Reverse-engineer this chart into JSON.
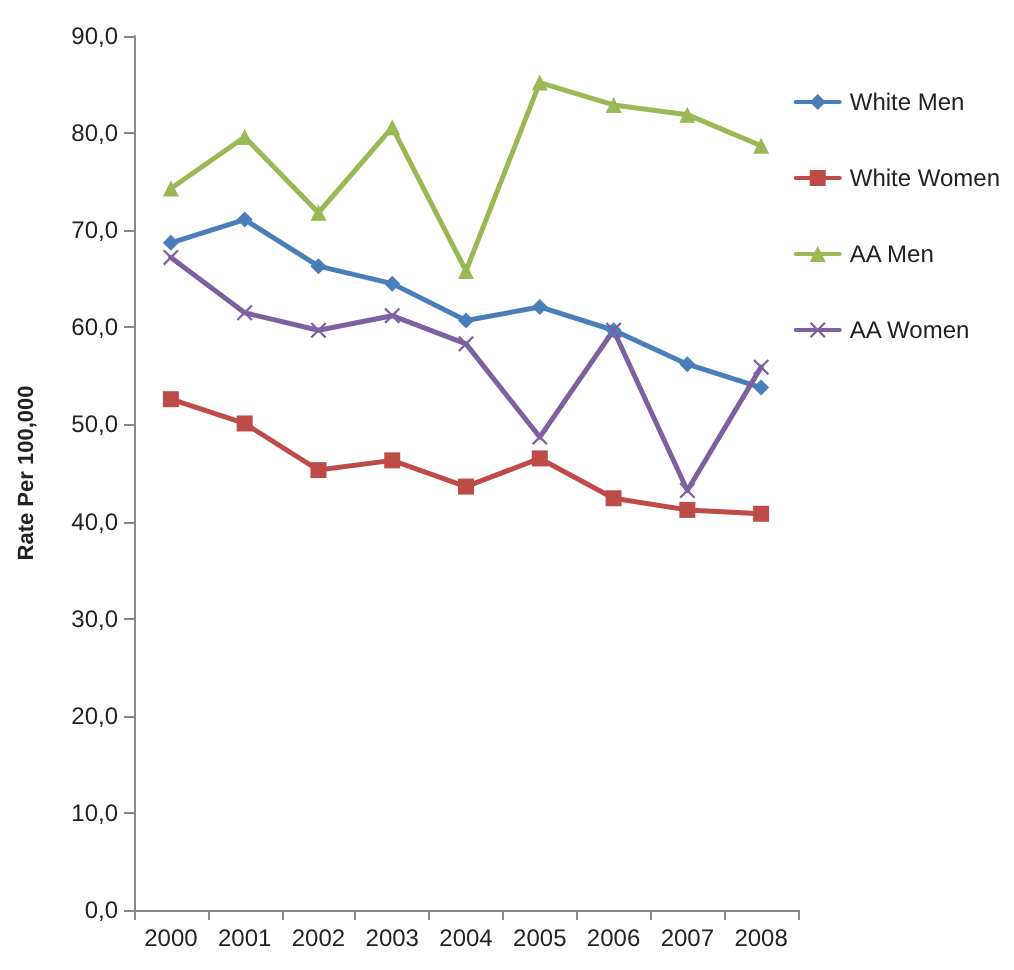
{
  "chart_data": {
    "type": "line",
    "ylabel": "Rate Per 100,000",
    "categories": [
      "2000",
      "2001",
      "2002",
      "2003",
      "2004",
      "2005",
      "2006",
      "2007",
      "2008"
    ],
    "series": [
      {
        "name": "White Men",
        "color": "#4a7ebb",
        "marker": "diamond",
        "values": [
          68.7,
          71.1,
          66.3,
          64.5,
          60.7,
          62.1,
          59.7,
          56.2,
          53.8
        ]
      },
      {
        "name": "White Women",
        "color": "#be4b48",
        "marker": "square",
        "values": [
          52.6,
          50.1,
          45.3,
          46.3,
          43.6,
          46.5,
          42.4,
          41.2,
          40.8
        ]
      },
      {
        "name": "AA Men",
        "color": "#98b954",
        "marker": "triangle",
        "values": [
          74.3,
          79.6,
          71.8,
          80.6,
          65.8,
          85.2,
          82.9,
          81.9,
          78.7
        ]
      },
      {
        "name": "AA Women",
        "color": "#7d60a0",
        "marker": "cross",
        "values": [
          67.2,
          61.5,
          59.7,
          61.2,
          58.3,
          48.7,
          59.7,
          43.2,
          55.9
        ]
      }
    ],
    "ylim": [
      0,
      90
    ],
    "yticks": [
      {
        "value": 0,
        "label": "0,0"
      },
      {
        "value": 10,
        "label": "10,0"
      },
      {
        "value": 20,
        "label": "20,0"
      },
      {
        "value": 30,
        "label": "30,0"
      },
      {
        "value": 40,
        "label": "40,0"
      },
      {
        "value": 50,
        "label": "50,0"
      },
      {
        "value": 60,
        "label": "60,0"
      },
      {
        "value": 70,
        "label": "70,0"
      },
      {
        "value": 80,
        "label": "80,0"
      },
      {
        "value": 90,
        "label": "90,0"
      }
    ],
    "grid": false,
    "legend": "right",
    "line_style": "solid"
  }
}
